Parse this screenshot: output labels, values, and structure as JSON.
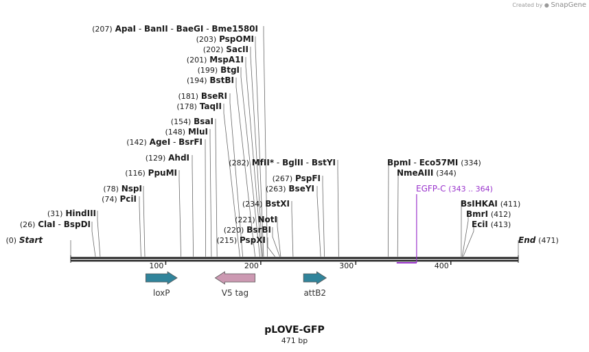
{
  "credit": {
    "prefix": "Created by",
    "brand": "SnapGene"
  },
  "colors": {
    "primer": "#9932cc",
    "loxP": "#31849b",
    "v5": "#cc99b2",
    "attB2": "#31849b",
    "line": "#222222"
  },
  "plasmid": {
    "name": "pLOVE-GFP",
    "length_label": "471 bp",
    "length": 471
  },
  "ruler": {
    "ticks": [
      "100",
      "200",
      "300",
      "400"
    ]
  },
  "sites": [
    {
      "pos": 0,
      "pos_label": "(0)",
      "names": [
        "Start"
      ]
    },
    {
      "pos": 26,
      "pos_label": "(26)",
      "names": [
        "ClaI",
        "BspDI"
      ]
    },
    {
      "pos": 31,
      "pos_label": "(31)",
      "names": [
        "HindIII"
      ]
    },
    {
      "pos": 74,
      "pos_label": "(74)",
      "names": [
        "PciI"
      ]
    },
    {
      "pos": 78,
      "pos_label": "(78)",
      "names": [
        "NspI"
      ]
    },
    {
      "pos": 116,
      "pos_label": "(116)",
      "names": [
        "PpuMI"
      ]
    },
    {
      "pos": 129,
      "pos_label": "(129)",
      "names": [
        "AhdI"
      ]
    },
    {
      "pos": 142,
      "pos_label": "(142)",
      "names": [
        "AgeI",
        "BsrFI"
      ]
    },
    {
      "pos": 148,
      "pos_label": "(148)",
      "names": [
        "MluI"
      ]
    },
    {
      "pos": 154,
      "pos_label": "(154)",
      "names": [
        "BsaI"
      ]
    },
    {
      "pos": 178,
      "pos_label": "(178)",
      "names": [
        "TaqII"
      ]
    },
    {
      "pos": 181,
      "pos_label": "(181)",
      "names": [
        "BseRI"
      ]
    },
    {
      "pos": 194,
      "pos_label": "(194)",
      "names": [
        "BstBI"
      ]
    },
    {
      "pos": 199,
      "pos_label": "(199)",
      "names": [
        "BtgI"
      ]
    },
    {
      "pos": 201,
      "pos_label": "(201)",
      "names": [
        "MspA1I"
      ]
    },
    {
      "pos": 202,
      "pos_label": "(202)",
      "names": [
        "SacII"
      ]
    },
    {
      "pos": 203,
      "pos_label": "(203)",
      "names": [
        "PspOMI"
      ]
    },
    {
      "pos": 207,
      "pos_label": "(207)",
      "names": [
        "ApaI",
        "BanII",
        "BaeGI",
        "Bme1580I"
      ]
    },
    {
      "pos": 215,
      "pos_label": "(215)",
      "names": [
        "PspXI"
      ]
    },
    {
      "pos": 220,
      "pos_label": "(220)",
      "names": [
        "BsrBI"
      ]
    },
    {
      "pos": 221,
      "pos_label": "(221)",
      "names": [
        "NotI"
      ]
    },
    {
      "pos": 234,
      "pos_label": "(234)",
      "names": [
        "BstXI"
      ]
    },
    {
      "pos": 263,
      "pos_label": "(263)",
      "names": [
        "BseYI"
      ]
    },
    {
      "pos": 267,
      "pos_label": "(267)",
      "names": [
        "PspFI"
      ]
    },
    {
      "pos": 282,
      "pos_label": "(282)",
      "names": [
        "MfII",
        "BglII",
        "BstYI"
      ],
      "star": "*"
    },
    {
      "pos": 334,
      "pos_label": "(334)",
      "names": [
        "BpmI",
        "Eco57MI"
      ]
    },
    {
      "pos": 344,
      "pos_label": "(344)",
      "names": [
        "NmeAIII"
      ]
    },
    {
      "pos": 411,
      "pos_label": "(411)",
      "names": [
        "BsIHKAI"
      ]
    },
    {
      "pos": 412,
      "pos_label": "(412)",
      "names": [
        "BmrI"
      ]
    },
    {
      "pos": 413,
      "pos_label": "(413)",
      "names": [
        "EciI"
      ]
    },
    {
      "pos": 471,
      "pos_label": "(471)",
      "names": [
        "End"
      ]
    }
  ],
  "primer": {
    "name": "EGFP-C",
    "range": "(343 .. 364)",
    "start": 343,
    "end": 364
  },
  "features": [
    {
      "name": "loxP",
      "start": 79,
      "end": 112,
      "direction": "forward",
      "color": "#31849b"
    },
    {
      "name": "V5 tag",
      "start": 152,
      "end": 194,
      "direction": "reverse",
      "color": "#cc99b2"
    },
    {
      "name": "attB2",
      "start": 245,
      "end": 269,
      "direction": "forward",
      "color": "#31849b"
    }
  ]
}
